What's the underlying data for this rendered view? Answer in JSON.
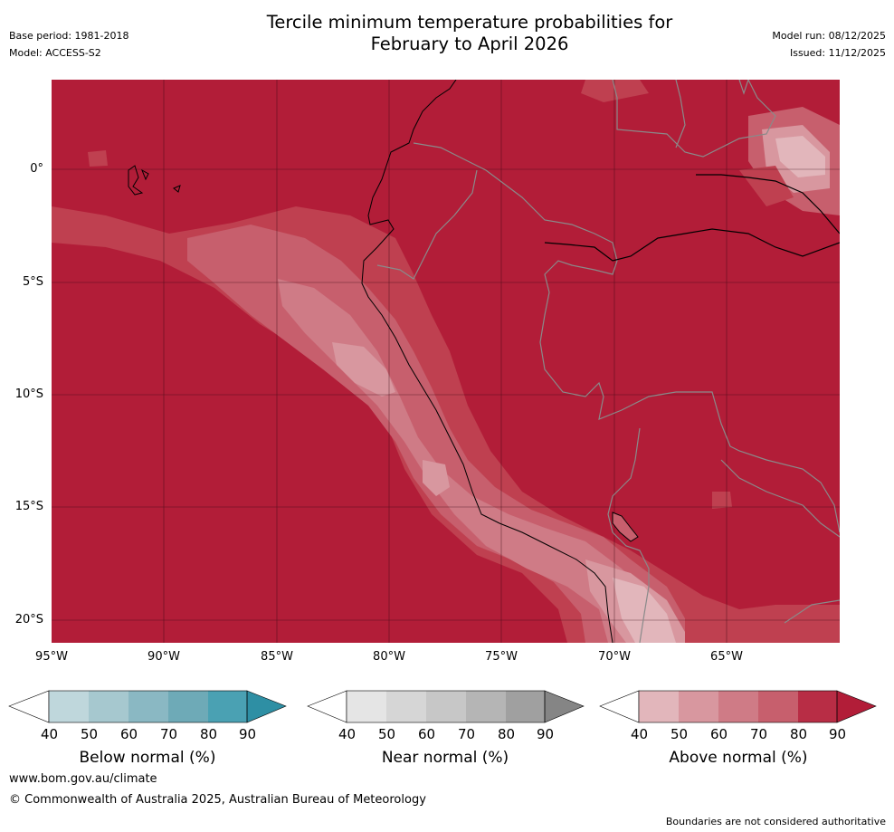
{
  "header": {
    "base_period": "Base period: 1981-2018",
    "model": "Model: ACCESS-S2",
    "title_line1": "Tercile minimum temperature probabilities for",
    "title_line2": "February to April 2026",
    "model_run": "Model run: 08/12/2025",
    "issued": "Issued: 11/12/2025"
  },
  "map": {
    "lat_labels": [
      "0°",
      "5°S",
      "10°S",
      "15°S",
      "20°S"
    ],
    "lon_labels": [
      "95°W",
      "90°W",
      "85°W",
      "80°W",
      "75°W",
      "70°W",
      "65°W"
    ],
    "dominant_category": "Above normal",
    "dominant_probability": "90",
    "colors": {
      "above_90": "#b21d38",
      "above_80": "#bf4050",
      "above_70": "#c75f6d",
      "above_60": "#cf7b86",
      "above_50": "#d8979f",
      "above_40": "#e2b6bb"
    }
  },
  "colorbars": [
    {
      "label": "Below normal (%)",
      "ticks": [
        "40",
        "50",
        "60",
        "70",
        "80",
        "90"
      ],
      "colors": [
        "#bfd7dc",
        "#a6c8cf",
        "#8ab8c3",
        "#6eaab7",
        "#4aa1b3",
        "#2e8fa4"
      ]
    },
    {
      "label": "Near normal (%)",
      "ticks": [
        "40",
        "50",
        "60",
        "70",
        "80",
        "90"
      ],
      "colors": [
        "#e5e5e5",
        "#d6d6d6",
        "#c7c7c7",
        "#b5b5b5",
        "#a0a0a0",
        "#858585"
      ]
    },
    {
      "label": "Above normal (%)",
      "ticks": [
        "40",
        "50",
        "60",
        "70",
        "80",
        "90"
      ],
      "colors": [
        "#e2b6bb",
        "#d8979f",
        "#cf7b86",
        "#c75f6d",
        "#b82d45",
        "#b21d38"
      ]
    }
  ],
  "footer": {
    "website": "www.bom.gov.au/climate",
    "copyright": "© Commonwealth of Australia 2025, Australian Bureau of Meteorology",
    "disclaimer": "Boundaries are not considered authoritative"
  }
}
